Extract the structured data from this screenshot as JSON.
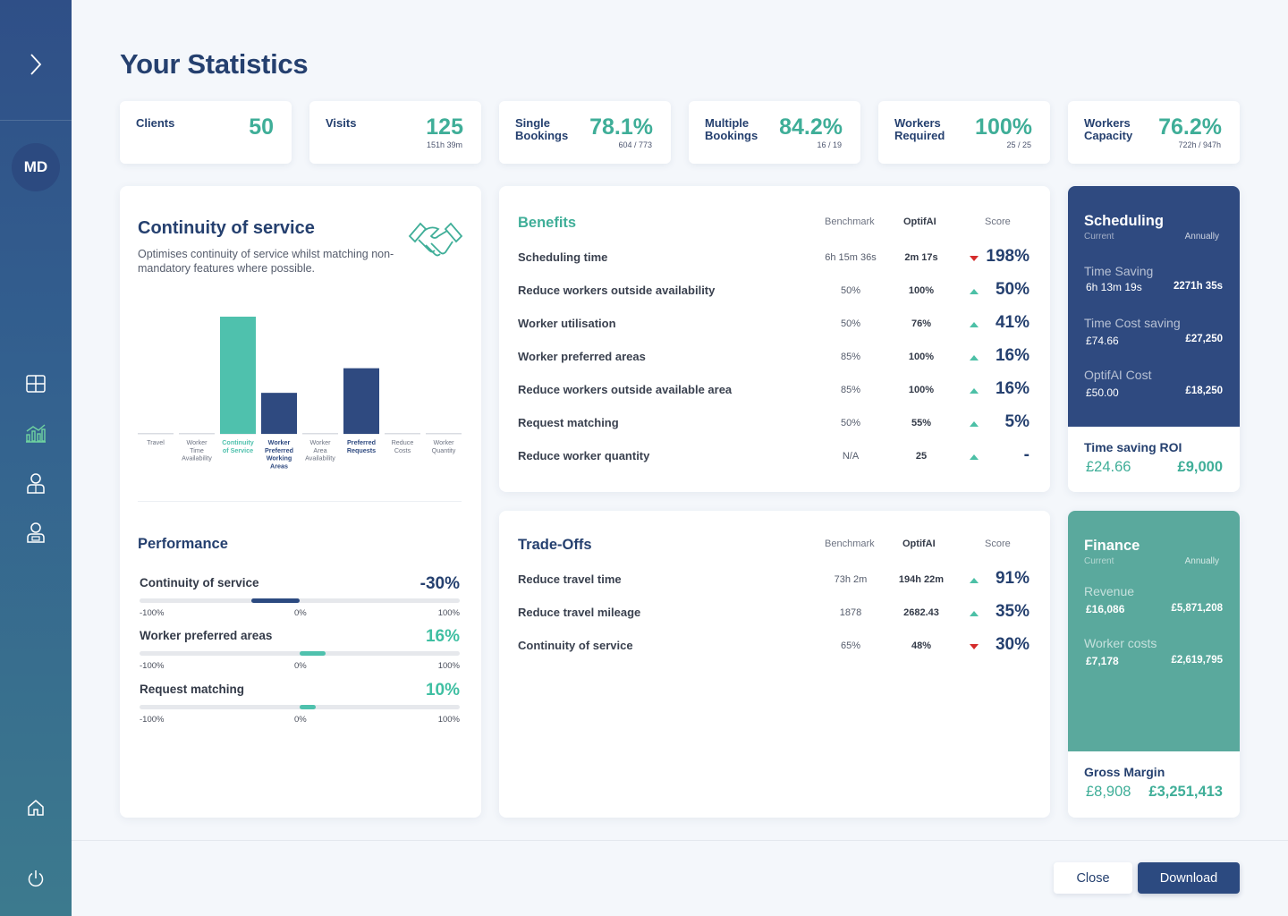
{
  "page_title": "Your Statistics",
  "sidebar": {
    "avatar": "MD",
    "icons": [
      "chevron-right-icon",
      "grid-icon",
      "analytics-icon",
      "worker-icon",
      "client-icon",
      "home-icon",
      "power-icon"
    ],
    "active_icon": "analytics-icon"
  },
  "stats": [
    {
      "label": "Clients",
      "value": "50",
      "sub": ""
    },
    {
      "label": "Visits",
      "value": "125",
      "sub": "151h 39m"
    },
    {
      "label": "Single Bookings",
      "value": "78.1%",
      "sub": "604 / 773"
    },
    {
      "label": "Multiple Bookings",
      "value": "84.2%",
      "sub": "16 / 19"
    },
    {
      "label": "Workers Required",
      "value": "100%",
      "sub": "25 / 25"
    },
    {
      "label": "Workers Capacity",
      "value": "76.2%",
      "sub": "722h / 947h"
    }
  ],
  "continuity": {
    "title": "Continuity of service",
    "description": "Optimises continuity of service whilst matching non-mandatory features where possible."
  },
  "chart_data": {
    "type": "bar",
    "categories": [
      "Travel",
      "Worker Time Availability",
      "Continuity of Service",
      "Worker Preferred Working Areas",
      "Worker Area Availability",
      "Preferred Requests",
      "Reduce Costs",
      "Worker Quantity"
    ],
    "values": [
      0,
      0,
      100,
      35,
      0,
      56,
      0,
      0
    ],
    "highlight": [
      false,
      false,
      true,
      true,
      false,
      true,
      false,
      false
    ],
    "colors": {
      "primary": "#4fc1ad",
      "secondary": "#2f4a80",
      "baseline": "#d9dce2"
    }
  },
  "performance": {
    "title": "Performance",
    "rows": [
      {
        "name": "Continuity of service",
        "value": "-30%",
        "level": -30,
        "color": "#2c4a80"
      },
      {
        "name": "Worker preferred areas",
        "value": "16%",
        "level": 16,
        "color": "#4fc1ad"
      },
      {
        "name": "Request matching",
        "value": "10%",
        "level": 10,
        "color": "#4fc1ad"
      }
    ],
    "ticks": [
      "-100%",
      "0%",
      "100%"
    ]
  },
  "benefits": {
    "title": "Benefits",
    "headers": {
      "benchmark": "Benchmark",
      "optifai": "OptifAI",
      "score": "Score"
    },
    "rows": [
      {
        "name": "Scheduling time",
        "bench": "6h 15m 36s",
        "opt": "2m 17s",
        "dir": "down",
        "score": "198%"
      },
      {
        "name": "Reduce workers outside availability",
        "bench": "50%",
        "opt": "100%",
        "dir": "up",
        "score": "50%"
      },
      {
        "name": "Worker utilisation",
        "bench": "50%",
        "opt": "76%",
        "dir": "up",
        "score": "41%"
      },
      {
        "name": "Worker preferred areas",
        "bench": "85%",
        "opt": "100%",
        "dir": "up",
        "score": "16%"
      },
      {
        "name": "Reduce workers outside available area",
        "bench": "85%",
        "opt": "100%",
        "dir": "up",
        "score": "16%"
      },
      {
        "name": "Request matching",
        "bench": "50%",
        "opt": "55%",
        "dir": "up",
        "score": "5%"
      },
      {
        "name": "Reduce worker quantity",
        "bench": "N/A",
        "opt": "25",
        "dir": "up",
        "score": "-"
      }
    ]
  },
  "tradeoffs": {
    "title": "Trade-Offs",
    "headers": {
      "benchmark": "Benchmark",
      "optifai": "OptifAI",
      "score": "Score"
    },
    "rows": [
      {
        "name": "Reduce travel time",
        "bench": "73h 2m",
        "opt": "194h 22m",
        "dir": "up",
        "score": "91%"
      },
      {
        "name": "Reduce travel mileage",
        "bench": "1878",
        "opt": "2682.43",
        "dir": "up",
        "score": "35%"
      },
      {
        "name": "Continuity of service",
        "bench": "65%",
        "opt": "48%",
        "dir": "down",
        "score": "30%"
      }
    ]
  },
  "scheduling": {
    "title": "Scheduling",
    "current": "Current",
    "annually": "Annually",
    "items": [
      {
        "label": "Time Saving",
        "current": "6h 13m 19s",
        "annual": "2271h 35s"
      },
      {
        "label": "Time Cost saving",
        "current": "£74.66",
        "annual": "£27,250"
      },
      {
        "label": "OptifAI Cost",
        "current": "£50.00",
        "annual": "£18,250"
      }
    ],
    "footer": {
      "label": "Time saving ROI",
      "current": "£24.66",
      "annual": "£9,000"
    }
  },
  "finance": {
    "title": "Finance",
    "current": "Current",
    "annually": "Annually",
    "items": [
      {
        "label": "Revenue",
        "current": "£16,086",
        "annual": "£5,871,208"
      },
      {
        "label": "Worker costs",
        "current": "£7,178",
        "annual": "£2,619,795"
      }
    ],
    "footer": {
      "label": "Gross Margin",
      "current": "£8,908",
      "annual": "£3,251,413"
    }
  },
  "buttons": {
    "close": "Close",
    "download": "Download"
  },
  "colors": {
    "navy": "#2c4a80",
    "teal": "#3fae98",
    "up": "#4cc0a6",
    "down": "#d52b2b"
  }
}
